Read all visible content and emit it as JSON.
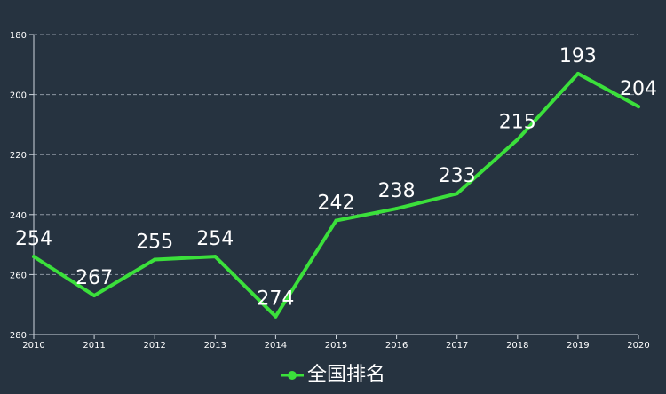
{
  "chart_data": {
    "type": "line",
    "x": [
      "2010",
      "2011",
      "2012",
      "2013",
      "2014",
      "2015",
      "2016",
      "2017",
      "2018",
      "2019",
      "2020"
    ],
    "series": [
      {
        "name": "全国排名",
        "values": [
          254,
          267,
          255,
          254,
          274,
          242,
          238,
          233,
          215,
          193,
          204
        ],
        "color": "#3be03b"
      }
    ],
    "ylim": [
      180,
      280
    ],
    "yticks": [
      180,
      200,
      220,
      240,
      260,
      280
    ],
    "y_inverted": true,
    "grid": true,
    "legend_placement": "bottom-center",
    "data_labels": true
  },
  "colors": {
    "background": "#263340",
    "axis": "#cfd6de",
    "grid": "#8d97a3",
    "label": "#ffffff"
  }
}
